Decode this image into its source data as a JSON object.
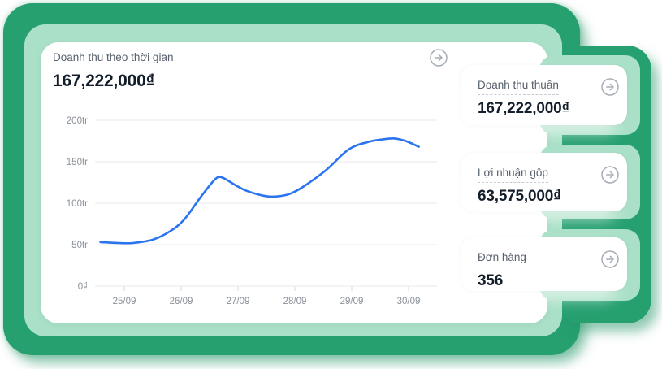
{
  "colors": {
    "panel_green": "#26A06F",
    "panel_mint": "#A9E0C7",
    "line_blue": "#2B74F0",
    "grid_gray": "#E8EAEE",
    "label_gray": "#8A9199",
    "value_dark": "#141E2B"
  },
  "main_card": {
    "title": "Doanh thu theo thời gian",
    "value": "167,222,000₫",
    "action_icon": "arrow-right-circle-icon"
  },
  "chart_data": {
    "type": "line",
    "title": "Doanh thu theo thời gian",
    "total_label": "167,222,000₫",
    "grid": true,
    "legend": false,
    "ylim_tr": [
      0,
      200
    ],
    "y_ticks": [
      {
        "tr": 200,
        "label": "200tr"
      },
      {
        "tr": 150,
        "label": "150tr"
      },
      {
        "tr": 100,
        "label": "100tr"
      },
      {
        "tr": 50,
        "label": "50tr"
      },
      {
        "tr": 0,
        "label": "0₫"
      }
    ],
    "x_ticks": [
      {
        "day": 25,
        "label": "25/09"
      },
      {
        "day": 26,
        "label": "26/09"
      },
      {
        "day": 27,
        "label": "27/09"
      },
      {
        "day": 28,
        "label": "28/09"
      },
      {
        "day": 29,
        "label": "29/09"
      },
      {
        "day": 30,
        "label": "30/09"
      }
    ],
    "series": [
      {
        "name": "Doanh thu",
        "color": "#2B74F0",
        "points_day_tr": [
          [
            24.58,
            53
          ],
          [
            24.9,
            52
          ],
          [
            25.15,
            52
          ],
          [
            25.5,
            56
          ],
          [
            25.8,
            66
          ],
          [
            26.05,
            80
          ],
          [
            26.35,
            108
          ],
          [
            26.6,
            129
          ],
          [
            26.72,
            131
          ],
          [
            26.95,
            122
          ],
          [
            27.15,
            115
          ],
          [
            27.45,
            109
          ],
          [
            27.65,
            108
          ],
          [
            27.9,
            111
          ],
          [
            28.15,
            120
          ],
          [
            28.55,
            140
          ],
          [
            28.95,
            165
          ],
          [
            29.3,
            174
          ],
          [
            29.55,
            177
          ],
          [
            29.75,
            178
          ],
          [
            29.95,
            175
          ],
          [
            30.18,
            168
          ]
        ]
      }
    ]
  },
  "stat_cards": [
    {
      "label": "Doanh thu thuần",
      "value": "167,222,000₫",
      "action_icon": "arrow-right-circle-icon"
    },
    {
      "label": "Lợi nhuận gộp",
      "value": "63,575,000₫",
      "action_icon": "arrow-right-circle-icon"
    },
    {
      "label": "Đơn hàng",
      "value": "356",
      "action_icon": "arrow-right-circle-icon"
    }
  ]
}
